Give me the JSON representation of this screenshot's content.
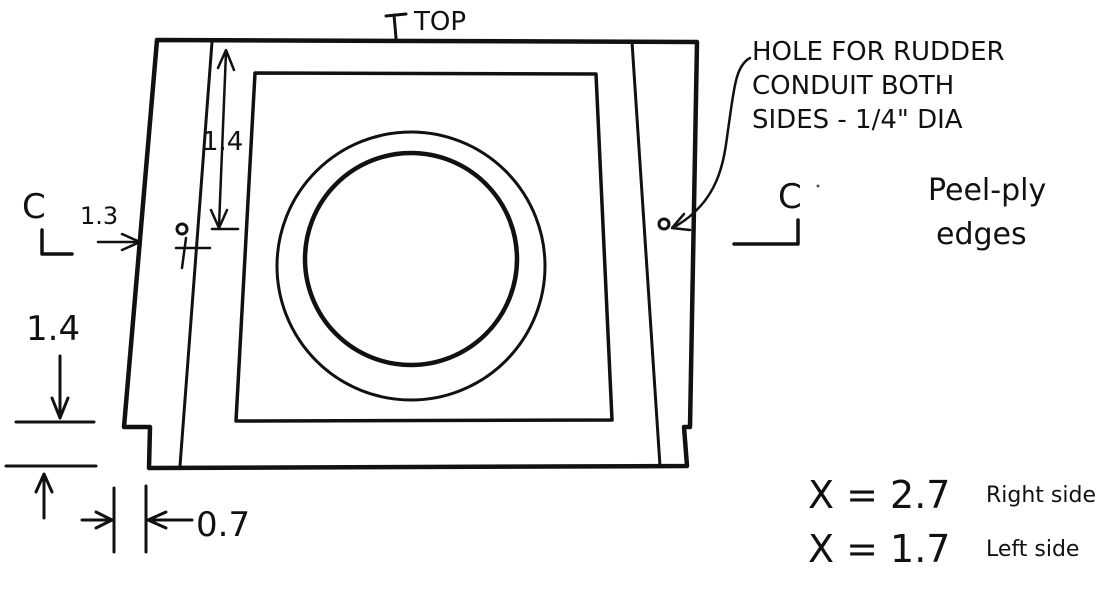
{
  "diagram": {
    "top_label": "TOP",
    "center_mark": "℄",
    "hole_note": {
      "line1": "HOLE FOR RUDDER",
      "line2": "CONDUIT BOTH",
      "line3": "SIDES - 1/4\" DIA"
    },
    "section_left": "C",
    "section_right": "C",
    "peel_ply": {
      "line1": "Peel-ply",
      "line2": "edges"
    },
    "dim_hole_from_top": "1.4",
    "dim_hole_from_edge": "1.3",
    "dim_notch_height": "1.4",
    "dim_notch_width": "0.7",
    "x_right": {
      "value": "X = 2.7",
      "side": "Right side"
    },
    "x_left": {
      "value": "X = 1.7",
      "side": "Left side"
    }
  }
}
